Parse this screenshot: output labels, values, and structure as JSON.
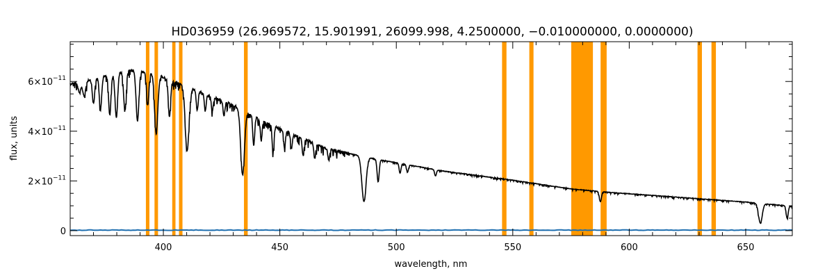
{
  "chart_data": {
    "type": "line",
    "title": "HD036959   (26.969572, 15.901991, 26099.998, 4.2500000, −0.010000000, 0.0000000)",
    "xlabel": "wavelength, nm",
    "ylabel": "flux, units",
    "xlim": [
      360,
      670
    ],
    "ylim": [
      -2e-12,
      7.6e-11
    ],
    "x_ticks": [
      400,
      450,
      500,
      550,
      600,
      650
    ],
    "x_tick_labels": [
      "400",
      "450",
      "500",
      "550",
      "600",
      "650"
    ],
    "y_ticks": [
      0,
      2e-11,
      4e-11,
      6e-11
    ],
    "y_tick_labels": [
      {
        "mantissa": "0",
        "exponent": ""
      },
      {
        "mantissa": "2×10",
        "exponent": "−11"
      },
      {
        "mantissa": "4×10",
        "exponent": "−11"
      },
      {
        "mantissa": "6×10",
        "exponent": "−11"
      }
    ],
    "grid": false,
    "masked_bands": [
      [
        392.5,
        394.0
      ],
      [
        396.2,
        397.7
      ],
      [
        403.8,
        405.2
      ],
      [
        406.7,
        408.2
      ],
      [
        434.6,
        436.2
      ],
      [
        545.4,
        547.3
      ],
      [
        557.1,
        558.9
      ],
      [
        575.1,
        584.4
      ],
      [
        587.7,
        590.3
      ],
      [
        629.3,
        631.2
      ],
      [
        635.3,
        637.2
      ]
    ],
    "series": [
      {
        "role": "flux",
        "color": "#000000",
        "continuum": [
          [
            360,
            5.9e-11
          ],
          [
            370,
            6.1e-11
          ],
          [
            385,
            6.45e-11
          ],
          [
            395,
            6.35e-11
          ],
          [
            410,
            5.8e-11
          ],
          [
            430,
            5.05e-11
          ],
          [
            445,
            4.3e-11
          ],
          [
            470,
            3.3e-11
          ],
          [
            490,
            2.9e-11
          ],
          [
            520,
            2.4e-11
          ],
          [
            550,
            2.03e-11
          ],
          [
            575,
            1.68e-11
          ],
          [
            590,
            1.55e-11
          ],
          [
            620,
            1.35e-11
          ],
          [
            650,
            1.15e-11
          ],
          [
            670,
            9.8e-12
          ]
        ],
        "absorption_lines": [
          {
            "center": 364.0,
            "depth": 4.5e-12,
            "width": 0.6
          },
          {
            "center": 366.0,
            "depth": 6e-12,
            "width": 0.6
          },
          {
            "center": 370.0,
            "depth": 1e-11,
            "width": 0.5
          },
          {
            "center": 373.0,
            "depth": 1.3e-11,
            "width": 0.5
          },
          {
            "center": 377.0,
            "depth": 1.6e-11,
            "width": 0.5
          },
          {
            "center": 379.8,
            "depth": 1.8e-11,
            "width": 0.55
          },
          {
            "center": 383.5,
            "depth": 1.6e-11,
            "width": 0.55
          },
          {
            "center": 388.9,
            "depth": 2e-11,
            "width": 0.6
          },
          {
            "center": 393.3,
            "depth": 1.3e-11,
            "width": 0.5
          },
          {
            "center": 396.9,
            "depth": 2.4e-11,
            "width": 0.7
          },
          {
            "center": 402.6,
            "depth": 1.5e-11,
            "width": 0.5
          },
          {
            "center": 410.2,
            "depth": 2.6e-11,
            "width": 0.8
          },
          {
            "center": 414.5,
            "depth": 8e-12,
            "width": 0.4
          },
          {
            "center": 418.0,
            "depth": 7e-12,
            "width": 0.4
          },
          {
            "center": 421.0,
            "depth": 6e-12,
            "width": 0.4
          },
          {
            "center": 426.0,
            "depth": 6e-12,
            "width": 0.4
          },
          {
            "center": 434.0,
            "depth": 2.6e-11,
            "width": 0.8
          },
          {
            "center": 438.8,
            "depth": 1.2e-11,
            "width": 0.4
          },
          {
            "center": 442.0,
            "depth": 8e-12,
            "width": 0.4
          },
          {
            "center": 447.1,
            "depth": 1.1e-11,
            "width": 0.4
          },
          {
            "center": 452.0,
            "depth": 7e-12,
            "width": 0.4
          },
          {
            "center": 455.0,
            "depth": 6e-12,
            "width": 0.4
          },
          {
            "center": 460.0,
            "depth": 7e-12,
            "width": 0.4
          },
          {
            "center": 465.0,
            "depth": 6e-12,
            "width": 0.4
          },
          {
            "center": 471.0,
            "depth": 4.5e-12,
            "width": 0.4
          },
          {
            "center": 486.1,
            "depth": 1.8e-11,
            "width": 0.9
          },
          {
            "center": 492.2,
            "depth": 9e-12,
            "width": 0.45
          },
          {
            "center": 501.6,
            "depth": 4e-12,
            "width": 0.4
          },
          {
            "center": 504.8,
            "depth": 3e-12,
            "width": 0.4
          },
          {
            "center": 516.8,
            "depth": 2.5e-12,
            "width": 0.4
          },
          {
            "center": 587.6,
            "depth": 4e-12,
            "width": 0.45
          },
          {
            "center": 656.3,
            "depth": 8e-12,
            "width": 0.8
          },
          {
            "center": 667.8,
            "depth": 5e-12,
            "width": 0.45
          }
        ]
      },
      {
        "role": "error",
        "color": "#1f6fb0",
        "level": 2e-13
      }
    ],
    "band_color": "#ff9900"
  }
}
